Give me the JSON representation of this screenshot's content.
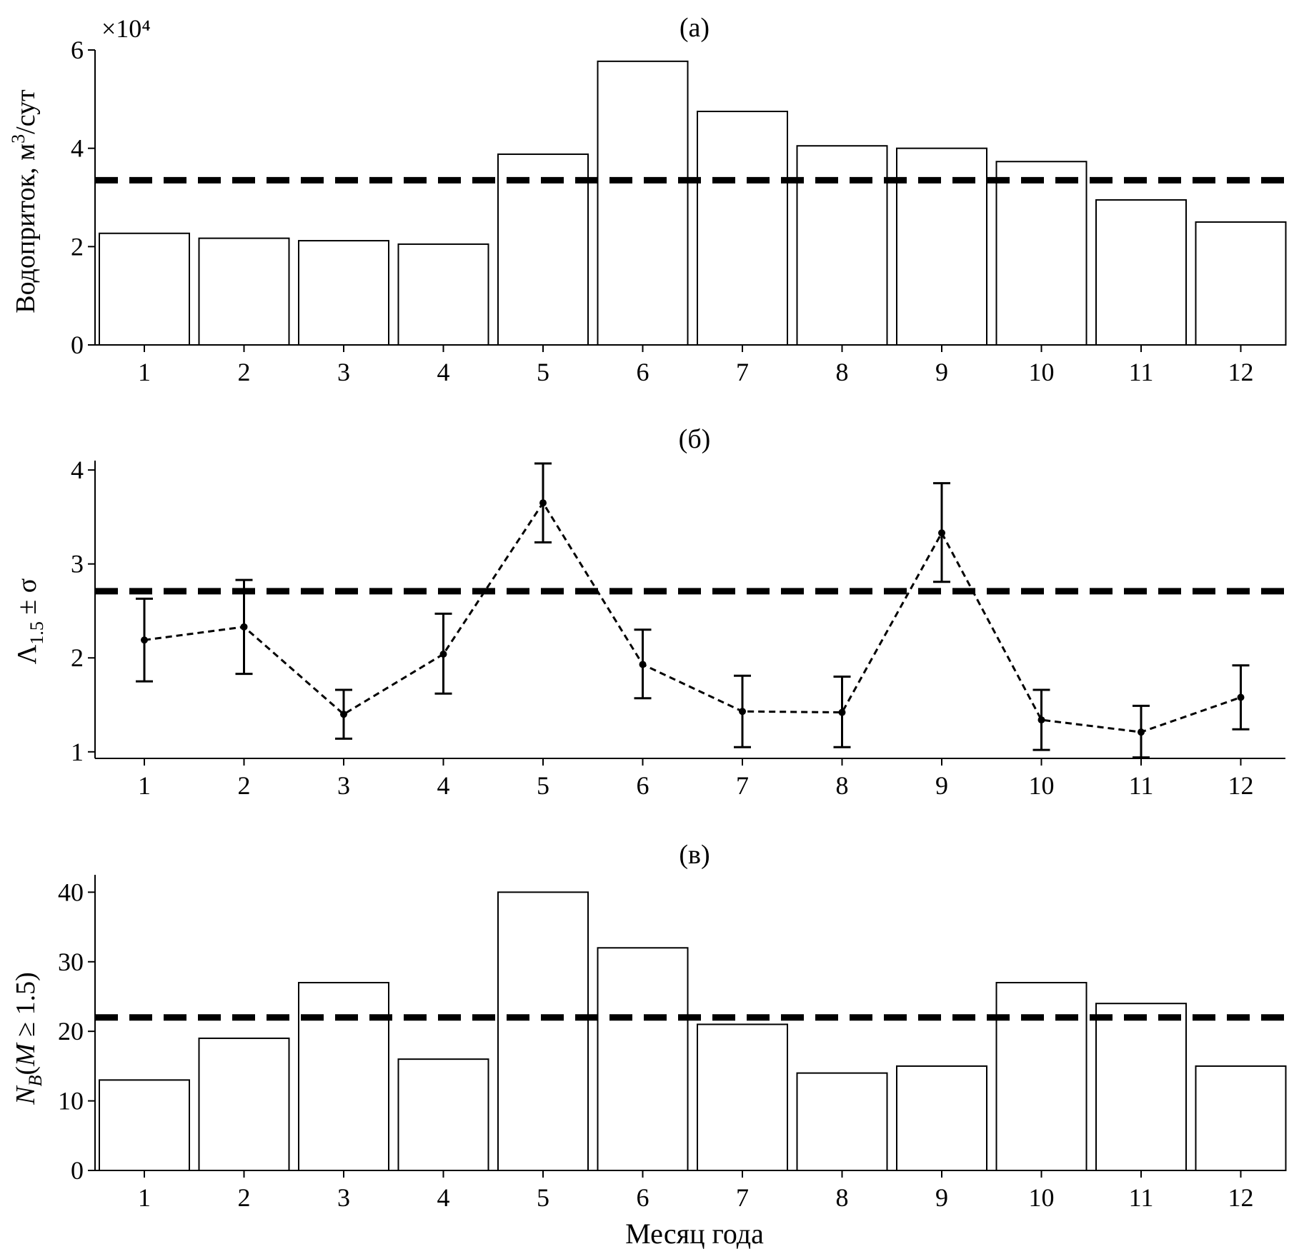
{
  "chart_data": [
    {
      "type": "bar",
      "title": "(а)",
      "ylabel": "Водоприток, м³/сут",
      "y_multiplier": "×10⁴",
      "categories": [
        "1",
        "2",
        "3",
        "4",
        "5",
        "6",
        "7",
        "8",
        "9",
        "10",
        "11",
        "12"
      ],
      "values": [
        2.27,
        2.17,
        2.12,
        2.05,
        3.88,
        5.77,
        4.75,
        4.05,
        4.0,
        3.73,
        2.95,
        2.5
      ],
      "reference_line": 3.35,
      "ylim": [
        0,
        6
      ],
      "yticks": [
        "0",
        "2",
        "4",
        "6"
      ]
    },
    {
      "type": "line",
      "title": "(б)",
      "ylabel": "Λ1.5 ± σ",
      "categories": [
        "1",
        "2",
        "3",
        "4",
        "5",
        "6",
        "7",
        "8",
        "9",
        "10",
        "11",
        "12"
      ],
      "values": [
        2.19,
        2.33,
        1.4,
        2.04,
        3.65,
        1.93,
        1.43,
        1.42,
        3.33,
        1.34,
        1.21,
        1.58
      ],
      "error_low": [
        1.75,
        1.83,
        1.14,
        1.62,
        3.23,
        1.57,
        1.05,
        1.05,
        2.81,
        1.02,
        0.94,
        1.24
      ],
      "error_high": [
        2.63,
        2.83,
        1.66,
        2.47,
        4.07,
        2.3,
        1.81,
        1.8,
        3.86,
        1.66,
        1.49,
        1.92
      ],
      "reference_line": 2.71,
      "ylim": [
        0.93,
        4.1
      ],
      "yticks": [
        "1",
        "2",
        "3",
        "4"
      ]
    },
    {
      "type": "bar",
      "title": "(в)",
      "ylabel": "NB(M ≥ 1.5)",
      "xlabel": "Месяц года",
      "categories": [
        "1",
        "2",
        "3",
        "4",
        "5",
        "6",
        "7",
        "8",
        "9",
        "10",
        "11",
        "12"
      ],
      "values": [
        13,
        19,
        27,
        16,
        40,
        32,
        21,
        14,
        15,
        27,
        24,
        15
      ],
      "reference_line": 22,
      "ylim": [
        0,
        42.5
      ],
      "yticks": [
        "0",
        "10",
        "20",
        "30",
        "40"
      ]
    }
  ]
}
